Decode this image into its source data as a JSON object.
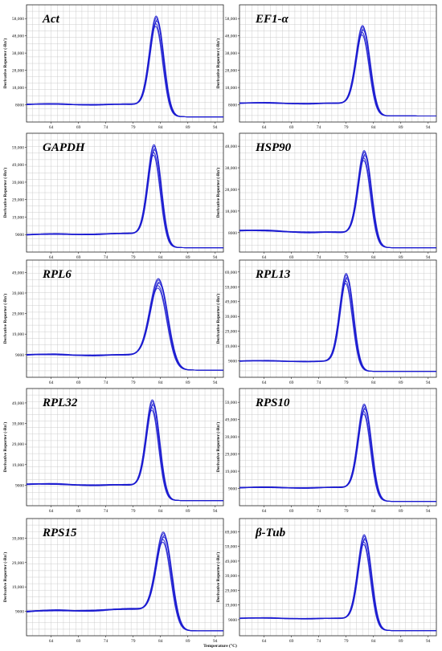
{
  "figure": {
    "ylabel": "Derivative Reporter (-Rn')",
    "xlabel": "Temperature (°C)",
    "line_color": "#1a1ad0",
    "grid_color": "#c8c8c8"
  },
  "chart_data": [
    {
      "type": "line",
      "title": "Act",
      "xticks": [
        "64",
        "69",
        "74",
        "79",
        "84",
        "89",
        "94"
      ],
      "yticks": [
        "8000",
        "18,000",
        "28,000",
        "38,000",
        "48,000",
        "58,000"
      ],
      "xlim": [
        59.5,
        95.5
      ],
      "ylim": [
        -2000,
        66000
      ],
      "grid": true,
      "curve": {
        "tm": 83.2,
        "peak": 59500,
        "sigma": 1.25,
        "baseline_start": 8300,
        "baseline_end": 8000,
        "tail": 1000,
        "replicates": 6
      }
    },
    {
      "type": "line",
      "title": "EF1-α",
      "xticks": [
        "64",
        "69",
        "74",
        "79",
        "84",
        "89",
        "94"
      ],
      "yticks": [
        "8000",
        "18,000",
        "28,000",
        "38,000",
        "48,000",
        "58,000"
      ],
      "xlim": [
        59.5,
        95.5
      ],
      "ylim": [
        -2000,
        66000
      ],
      "grid": true,
      "curve": {
        "tm": 82.0,
        "peak": 54000,
        "sigma": 1.25,
        "baseline_start": 9000,
        "baseline_end": 8500,
        "tail": 1500,
        "replicates": 6
      }
    },
    {
      "type": "line",
      "title": "GAPDH",
      "xticks": [
        "64",
        "69",
        "74",
        "79",
        "84",
        "89",
        "94"
      ],
      "yticks": [
        "9000",
        "19,000",
        "29,000",
        "39,000",
        "49,000",
        "59,000"
      ],
      "xlim": [
        59.5,
        95.5
      ],
      "ylim": [
        -1000,
        67000
      ],
      "grid": true,
      "curve": {
        "tm": 82.8,
        "peak": 60500,
        "sigma": 1.2,
        "baseline_start": 9000,
        "baseline_end": 10000,
        "tail": 1500,
        "replicates": 6
      }
    },
    {
      "type": "line",
      "title": "HSP90",
      "xticks": [
        "64",
        "69",
        "74",
        "79",
        "84",
        "89",
        "94"
      ],
      "yticks": [
        "8000",
        "18,000",
        "28,000",
        "38,000",
        "48,000"
      ],
      "xlim": [
        59.5,
        95.5
      ],
      "ylim": [
        -1000,
        54000
      ],
      "grid": true,
      "curve": {
        "tm": 82.3,
        "peak": 46000,
        "sigma": 1.2,
        "baseline_start": 9000,
        "baseline_end": 7000,
        "tail": 1000,
        "replicates": 6
      }
    },
    {
      "type": "line",
      "title": "RPL6",
      "xticks": [
        "64",
        "69",
        "74",
        "79",
        "84",
        "89",
        "94"
      ],
      "yticks": [
        "9000",
        "19,000",
        "29,000",
        "39,000",
        "49,000"
      ],
      "xlim": [
        59.5,
        95.5
      ],
      "ylim": [
        -2000,
        55000
      ],
      "grid": true,
      "curve": {
        "tm": 83.6,
        "peak": 46000,
        "sigma": 1.6,
        "baseline_start": 9000,
        "baseline_end": 8500,
        "tail": 1500,
        "replicates": 6
      }
    },
    {
      "type": "line",
      "title": "RPL13",
      "xticks": [
        "64",
        "69",
        "74",
        "79",
        "84",
        "89",
        "94"
      ],
      "yticks": [
        "9000",
        "19,000",
        "29,000",
        "39,000",
        "49,000",
        "59,000",
        "69,000"
      ],
      "xlim": [
        59.5,
        95.5
      ],
      "ylim": [
        -2000,
        77000
      ],
      "grid": true,
      "curve": {
        "tm": 79.0,
        "peak": 68000,
        "sigma": 1.2,
        "baseline_start": 9000,
        "baseline_end": 8500,
        "tail": 2000,
        "replicates": 6
      }
    },
    {
      "type": "line",
      "title": "RPL32",
      "xticks": [
        "64",
        "69",
        "74",
        "79",
        "84",
        "89",
        "94"
      ],
      "yticks": [
        "9000",
        "19,000",
        "29,000",
        "39,000",
        "49,000"
      ],
      "xlim": [
        59.5,
        95.5
      ],
      "ylim": [
        -1000,
        56000
      ],
      "grid": true,
      "curve": {
        "tm": 82.5,
        "peak": 50500,
        "sigma": 1.2,
        "baseline_start": 9500,
        "baseline_end": 8500,
        "tail": 1500,
        "replicates": 6
      }
    },
    {
      "type": "line",
      "title": "RPS10",
      "xticks": [
        "64",
        "69",
        "74",
        "79",
        "84",
        "89",
        "94"
      ],
      "yticks": [
        "9000",
        "19,000",
        "29,000",
        "39,000",
        "49,000",
        "59,000"
      ],
      "xlim": [
        59.5,
        95.5
      ],
      "ylim": [
        -1000,
        67000
      ],
      "grid": true,
      "curve": {
        "tm": 82.3,
        "peak": 58000,
        "sigma": 1.2,
        "baseline_start": 9500,
        "baseline_end": 9500,
        "tail": 1500,
        "replicates": 6
      }
    },
    {
      "type": "line",
      "title": "RPS15",
      "xticks": [
        "64",
        "69",
        "74",
        "79",
        "84",
        "89",
        "94"
      ],
      "yticks": [
        "9000",
        "19,000",
        "29,000",
        "39,000"
      ],
      "xlim": [
        59.5,
        95.5
      ],
      "ylim": [
        -1000,
        47000
      ],
      "grid": true,
      "curve": {
        "tm": 84.5,
        "peak": 41500,
        "sigma": 1.4,
        "baseline_start": 9000,
        "baseline_end": 10500,
        "tail": 1000,
        "replicates": 6
      }
    },
    {
      "type": "line",
      "title": "β-Tub",
      "xticks": [
        "64",
        "69",
        "74",
        "79",
        "84",
        "89",
        "94"
      ],
      "yticks": [
        "9000",
        "19,000",
        "29,000",
        "39,000",
        "49,000",
        "59,000",
        "69,000"
      ],
      "xlim": [
        59.5,
        95.5
      ],
      "ylim": [
        -2000,
        78000
      ],
      "grid": true,
      "curve": {
        "tm": 82.3,
        "peak": 67000,
        "sigma": 1.2,
        "baseline_start": 10000,
        "baseline_end": 9500,
        "tail": 1500,
        "replicates": 6
      }
    }
  ]
}
